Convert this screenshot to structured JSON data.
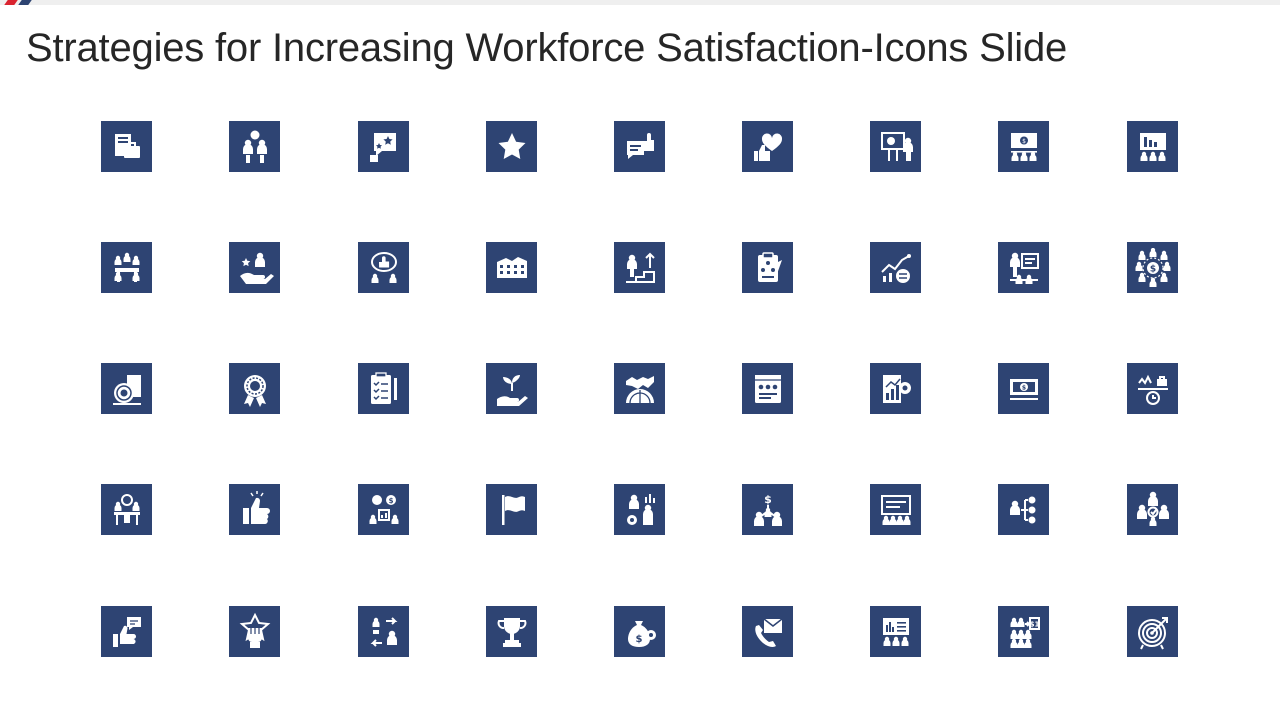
{
  "slide": {
    "title": "Strategies for Increasing Workforce Satisfaction-Icons Slide"
  },
  "colors": {
    "tile": "#2e4473",
    "icon": "#ffffff",
    "accent_red": "#d9232f",
    "accent_navy": "#2d4472",
    "title_text": "#262626"
  },
  "icons": [
    [
      "documents-briefcase-icon",
      "team-discussion-icon",
      "star-rating-feedback-icon",
      "star-icon",
      "thumbs-up-chat-icon",
      "heart-thumbs-up-icon",
      "presentation-board-icon",
      "money-presentation-icon",
      "chart-presentation-icon"
    ],
    [
      "team-meeting-icon",
      "employee-recognition-hand-icon",
      "thumbs-up-discussion-icon",
      "office-building-icon",
      "career-growth-steps-icon",
      "clipboard-checklist-icon",
      "growth-chart-settings-icon",
      "trainer-board-icon",
      "dollar-network-icon"
    ],
    [
      "coins-document-icon",
      "award-badge-icon",
      "checklist-pen-icon",
      "plant-in-hand-icon",
      "handshake-globe-icon",
      "rating-browser-icon",
      "report-gear-icon",
      "money-banner-icon",
      "work-life-balance-icon"
    ],
    [
      "office-desk-meeting-icon",
      "thumbs-up-icon",
      "finance-discussion-icon",
      "flag-icon",
      "team-analytics-icon",
      "dollar-team-icon",
      "team-board-icon",
      "manager-hierarchy-icon",
      "team-core-icon"
    ],
    [
      "thumbs-up-comment-icon",
      "raised-fist-star-icon",
      "people-exchange-icon",
      "trophy-icon",
      "money-bag-gear-icon",
      "phone-envelope-icon",
      "audience-dashboard-icon",
      "salary-team-icon",
      "target-icon"
    ]
  ]
}
